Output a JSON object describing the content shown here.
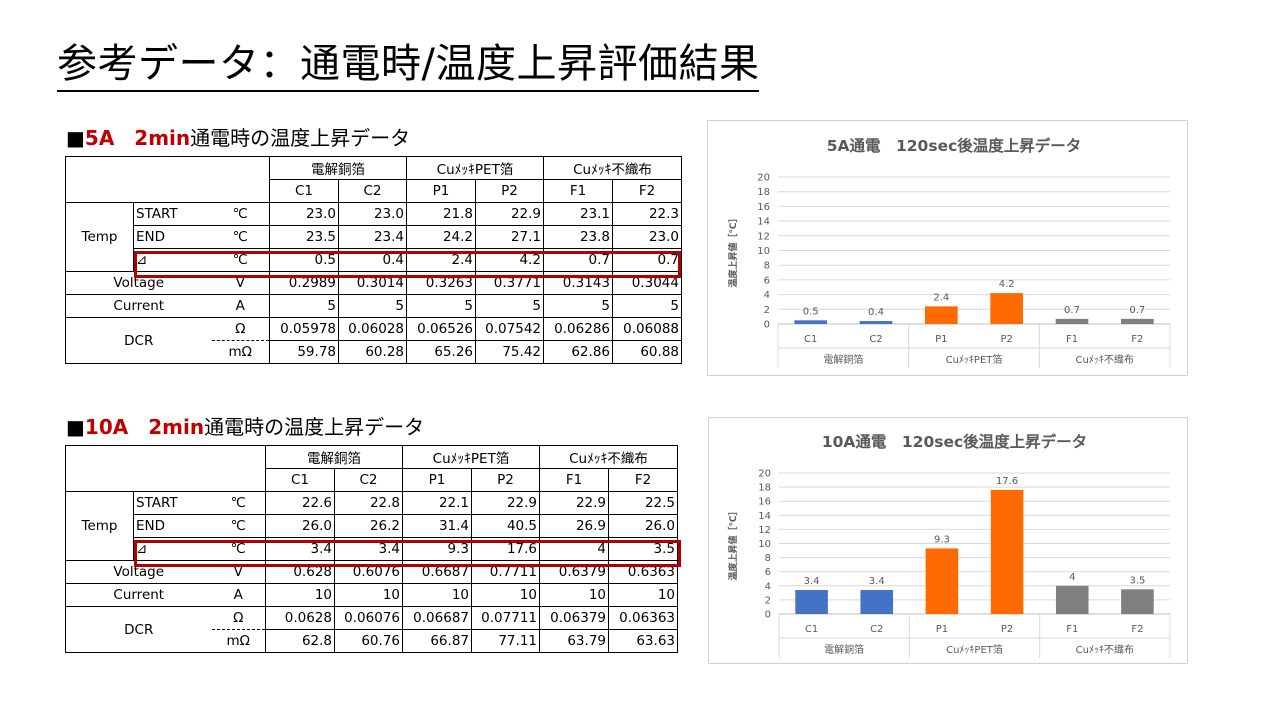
{
  "page_title": "参考データ：通電時/温度上昇評価結果",
  "sections": [
    {
      "head_red": "5A　2min",
      "head_rest": "通電時の温度上昇データ",
      "head_mark": "■",
      "groups": [
        "電解銅箔",
        "CuﾒｯｷPET箔",
        "Cuﾒｯｷ不織布"
      ],
      "cols": [
        "C1",
        "C2",
        "P1",
        "P2",
        "F1",
        "F2"
      ],
      "temp_label": "Temp",
      "rows": [
        {
          "label": "START",
          "unit": "℃",
          "values": [
            "23.0",
            "23.0",
            "21.8",
            "22.9",
            "23.1",
            "22.3"
          ]
        },
        {
          "label": "END",
          "unit": "℃",
          "values": [
            "23.5",
            "23.4",
            "24.2",
            "27.1",
            "23.8",
            "23.0"
          ]
        },
        {
          "label": "⊿",
          "unit": "℃",
          "values": [
            "0.5",
            "0.4",
            "2.4",
            "4.2",
            "0.7",
            "0.7"
          ]
        }
      ],
      "voltage": {
        "label": "Voltage",
        "unit": "V",
        "values": [
          "0.2989",
          "0.3014",
          "0.3263",
          "0.3771",
          "0.3143",
          "0.3044"
        ]
      },
      "current": {
        "label": "Current",
        "unit": "A",
        "values": [
          "5",
          "5",
          "5",
          "5",
          "5",
          "5"
        ]
      },
      "dcr": {
        "label": "DCR",
        "rows": [
          {
            "unit": "Ω",
            "values": [
              "0.05978",
              "0.06028",
              "0.06526",
              "0.07542",
              "0.06286",
              "0.06088"
            ]
          },
          {
            "unit": "mΩ",
            "values": [
              "59.78",
              "60.28",
              "65.26",
              "75.42",
              "62.86",
              "60.88"
            ]
          }
        ]
      }
    },
    {
      "head_red": "10A　2min",
      "head_rest": "通電時の温度上昇データ",
      "head_mark": "■",
      "groups": [
        "電解銅箔",
        "CuﾒｯｷPET箔",
        "Cuﾒｯｷ不織布"
      ],
      "cols": [
        "C1",
        "C2",
        "P1",
        "P2",
        "F1",
        "F2"
      ],
      "temp_label": "Temp",
      "rows": [
        {
          "label": "START",
          "unit": "℃",
          "values": [
            "22.6",
            "22.8",
            "22.1",
            "22.9",
            "22.9",
            "22.5"
          ]
        },
        {
          "label": "END",
          "unit": "℃",
          "values": [
            "26.0",
            "26.2",
            "31.4",
            "40.5",
            "26.9",
            "26.0"
          ]
        },
        {
          "label": "⊿",
          "unit": "℃",
          "values": [
            "3.4",
            "3.4",
            "9.3",
            "17.6",
            "4",
            "3.5"
          ]
        }
      ],
      "voltage": {
        "label": "Voltage",
        "unit": "V",
        "values": [
          "0.628",
          "0.6076",
          "0.6687",
          "0.7711",
          "0.6379",
          "0.6363"
        ]
      },
      "current": {
        "label": "Current",
        "unit": "A",
        "values": [
          "10",
          "10",
          "10",
          "10",
          "10",
          "10"
        ]
      },
      "dcr": {
        "label": "DCR",
        "rows": [
          {
            "unit": "Ω",
            "values": [
              "0.0628",
              "0.06076",
              "0.06687",
              "0.07711",
              "0.06379",
              "0.06363"
            ]
          },
          {
            "unit": "mΩ",
            "values": [
              "62.8",
              "60.76",
              "66.87",
              "77.11",
              "63.79",
              "63.63"
            ]
          }
        ]
      }
    }
  ],
  "chart_data": [
    {
      "type": "bar",
      "title": "5A通電　120sec後温度上昇データ",
      "ylabel": "温度上昇値［℃］",
      "ylim": [
        0,
        20
      ],
      "yticks": [
        "0",
        "2",
        "4",
        "6",
        "8",
        "10",
        "12",
        "14",
        "16",
        "18",
        "20"
      ],
      "categories": [
        "C1",
        "C2",
        "P1",
        "P2",
        "F1",
        "F2"
      ],
      "groups": [
        "電解銅箔",
        "CuﾒｯｷPET箔",
        "Cuﾒｯｷ不織布"
      ],
      "values": [
        0.5,
        0.4,
        2.4,
        4.2,
        0.7,
        0.7
      ],
      "labels": [
        "0.5",
        "0.4",
        "2.4",
        "4.2",
        "0.7",
        "0.7"
      ],
      "colors": [
        "#4472c4",
        "#4472c4",
        "#ff6a00",
        "#ff6a00",
        "#7f7f7f",
        "#7f7f7f"
      ],
      "grid": true
    },
    {
      "type": "bar",
      "title": "10A通電　120sec後温度上昇データ",
      "ylabel": "温度上昇値［℃］",
      "ylim": [
        0,
        20
      ],
      "yticks": [
        "0",
        "2",
        "4",
        "6",
        "8",
        "10",
        "12",
        "14",
        "16",
        "18",
        "20"
      ],
      "categories": [
        "C1",
        "C2",
        "P1",
        "P2",
        "F1",
        "F2"
      ],
      "groups": [
        "電解銅箔",
        "CuﾒｯｷPET箔",
        "Cuﾒｯｷ不織布"
      ],
      "values": [
        3.4,
        3.4,
        9.3,
        17.6,
        4,
        3.5
      ],
      "labels": [
        "3.4",
        "3.4",
        "9.3",
        "17.6",
        "4",
        "3.5"
      ],
      "colors": [
        "#4472c4",
        "#4472c4",
        "#ff6a00",
        "#ff6a00",
        "#7f7f7f",
        "#7f7f7f"
      ],
      "grid": true
    }
  ]
}
